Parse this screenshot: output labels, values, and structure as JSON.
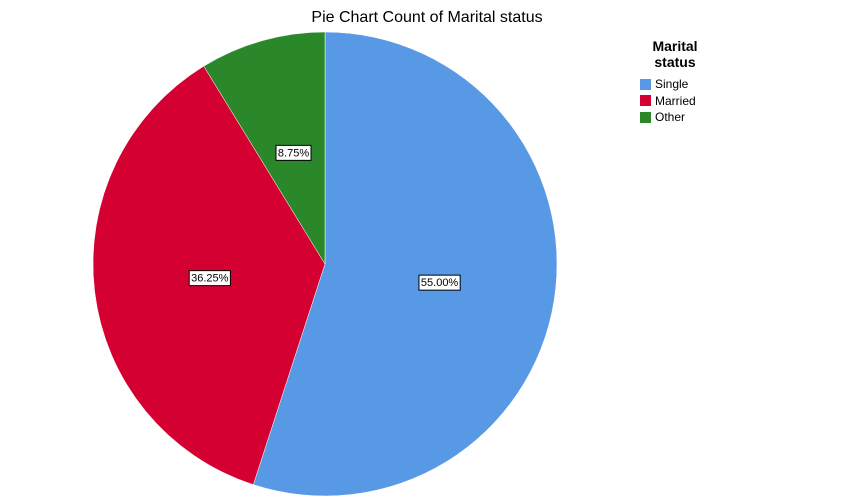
{
  "chart_data": {
    "type": "pie",
    "title": "Pie Chart Count of Marital status",
    "legend_title_lines": [
      "Marital",
      "status"
    ],
    "legend_position": "top-right",
    "categories": [
      "Single",
      "Married",
      "Other"
    ],
    "values": [
      55.0,
      36.25,
      8.75
    ],
    "labels": [
      "55.00%",
      "36.25%",
      "8.75%"
    ],
    "colors": [
      "#5899E6",
      "#D50032",
      "#2A882A"
    ]
  }
}
